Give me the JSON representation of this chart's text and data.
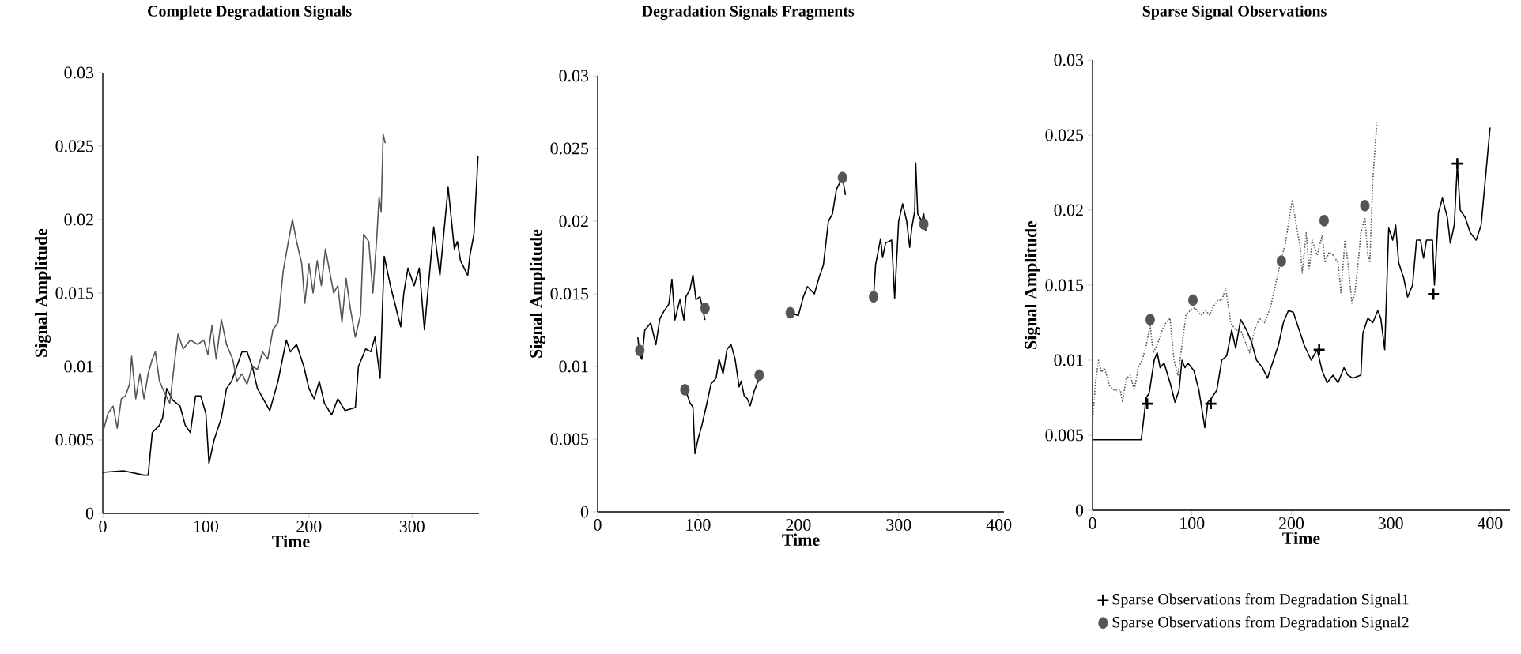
{
  "chart_data": [
    {
      "type": "line",
      "title": "Complete Degradation Signals",
      "xlabel": "Time",
      "ylabel": "Signal Amplitude",
      "xlim": [
        0,
        365
      ],
      "ylim": [
        0,
        0.03
      ],
      "xticks": [
        0,
        100,
        200,
        300
      ],
      "yticks": [
        0,
        0.005,
        0.01,
        0.015,
        0.02,
        0.025,
        0.03
      ],
      "series": [
        {
          "color": "#000000",
          "x": [
            0,
            20,
            40,
            44,
            48,
            55,
            58,
            62,
            68,
            75,
            80,
            85,
            90,
            95,
            100,
            103,
            108,
            115,
            120,
            125,
            135,
            140,
            145,
            150,
            158,
            162,
            170,
            178,
            182,
            188,
            195,
            200,
            205,
            210,
            215,
            222,
            228,
            235,
            245,
            248,
            255,
            260,
            264,
            269,
            273,
            279,
            289,
            292,
            296,
            302,
            307,
            312,
            321,
            327,
            335,
            341,
            344,
            347,
            354,
            356,
            360,
            364
          ],
          "values": [
            0.0028,
            0.0029,
            0.0026,
            0.0026,
            0.0055,
            0.006,
            0.0065,
            0.0085,
            0.0077,
            0.0073,
            0.006,
            0.0055,
            0.008,
            0.008,
            0.0068,
            0.0034,
            0.005,
            0.0065,
            0.0085,
            0.009,
            0.011,
            0.011,
            0.01,
            0.0085,
            0.0075,
            0.007,
            0.009,
            0.0118,
            0.011,
            0.0115,
            0.01,
            0.0085,
            0.0078,
            0.009,
            0.0075,
            0.0067,
            0.0078,
            0.007,
            0.0072,
            0.01,
            0.0112,
            0.011,
            0.012,
            0.0092,
            0.0175,
            0.0155,
            0.0127,
            0.015,
            0.0167,
            0.0155,
            0.0167,
            0.0125,
            0.0195,
            0.0162,
            0.0222,
            0.018,
            0.0185,
            0.0172,
            0.0162,
            0.0175,
            0.019,
            0.0243
          ]
        },
        {
          "color": "#555555",
          "x": [
            0,
            5,
            10,
            14,
            18,
            22,
            26,
            28,
            32,
            36,
            40,
            44,
            48,
            51,
            55,
            60,
            65,
            70,
            73,
            78,
            85,
            92,
            98,
            102,
            106,
            110,
            115,
            120,
            126,
            130,
            135,
            140,
            145,
            150,
            155,
            160,
            165,
            170,
            175,
            180,
            184,
            188,
            193,
            196,
            200,
            204,
            208,
            212,
            216,
            220,
            224,
            228,
            232,
            236,
            240,
            245,
            250,
            253,
            258,
            262,
            266,
            268,
            270,
            272,
            274
          ],
          "values": [
            0.0055,
            0.0068,
            0.0073,
            0.0058,
            0.0078,
            0.008,
            0.0088,
            0.0107,
            0.0078,
            0.0095,
            0.0078,
            0.0095,
            0.0105,
            0.011,
            0.009,
            0.0082,
            0.0075,
            0.0105,
            0.0122,
            0.0112,
            0.0118,
            0.0115,
            0.0118,
            0.0108,
            0.0128,
            0.0105,
            0.0132,
            0.0115,
            0.0105,
            0.009,
            0.0095,
            0.0088,
            0.01,
            0.0098,
            0.011,
            0.0105,
            0.0125,
            0.013,
            0.0165,
            0.0185,
            0.02,
            0.0185,
            0.017,
            0.0143,
            0.017,
            0.015,
            0.0172,
            0.0155,
            0.018,
            0.0165,
            0.015,
            0.0155,
            0.013,
            0.016,
            0.014,
            0.012,
            0.0135,
            0.019,
            0.0185,
            0.015,
            0.019,
            0.0215,
            0.0205,
            0.0258,
            0.0252
          ]
        }
      ]
    },
    {
      "type": "line",
      "title": "Degradation Signals Fragments",
      "xlabel": "Time",
      "ylabel": "Signal Amplitude",
      "xlim": [
        0,
        405
      ],
      "ylim": [
        0,
        0.03
      ],
      "xticks": [
        0,
        100,
        200,
        300,
        400
      ],
      "yticks": [
        0,
        0.005,
        0.01,
        0.015,
        0.02,
        0.025,
        0.03
      ],
      "series": [
        {
          "color": "#000000",
          "x": [
            40,
            42,
            44,
            47,
            53,
            58,
            62,
            66,
            71,
            74,
            77,
            82,
            86,
            88,
            92,
            95,
            98,
            102,
            107
          ],
          "values": [
            0.012,
            0.0108,
            0.0105,
            0.0125,
            0.013,
            0.0115,
            0.0133,
            0.0138,
            0.0143,
            0.016,
            0.0132,
            0.0146,
            0.0132,
            0.0148,
            0.0153,
            0.0163,
            0.0146,
            0.0148,
            0.0132
          ]
        },
        {
          "color": "#000000",
          "x": [
            87,
            92,
            95,
            97,
            100,
            104,
            108,
            113,
            118,
            121,
            125,
            129,
            133,
            137,
            141,
            143,
            146,
            149,
            152,
            156,
            161
          ],
          "values": [
            0.0085,
            0.0075,
            0.0072,
            0.004,
            0.005,
            0.006,
            0.0072,
            0.0088,
            0.0092,
            0.0105,
            0.0095,
            0.0112,
            0.0115,
            0.0105,
            0.0086,
            0.009,
            0.008,
            0.0078,
            0.0073,
            0.0083,
            0.0092
          ]
        },
        {
          "color": "#000000",
          "x": [
            192,
            200,
            205,
            209,
            216,
            221,
            225,
            230,
            234,
            238,
            244,
            247
          ],
          "values": [
            0.0137,
            0.0135,
            0.0148,
            0.0155,
            0.015,
            0.0162,
            0.017,
            0.02,
            0.0205,
            0.0222,
            0.023,
            0.0218
          ]
        },
        {
          "color": "#000000",
          "x": [
            275,
            277,
            282,
            284,
            287,
            293,
            296,
            300,
            304,
            308,
            311,
            313,
            316,
            317,
            319,
            323,
            325,
            327
          ],
          "values": [
            0.0148,
            0.017,
            0.0188,
            0.0175,
            0.0185,
            0.0187,
            0.0147,
            0.02,
            0.0212,
            0.02,
            0.0182,
            0.0195,
            0.0207,
            0.024,
            0.0205,
            0.02,
            0.0205,
            0.0193
          ]
        },
        {
          "type": "scatter",
          "marker": "circle",
          "color": "#555555",
          "x": [
            42,
            107,
            87,
            161,
            192,
            244,
            275,
            325
          ],
          "values": [
            0.0111,
            0.014,
            0.0084,
            0.0094,
            0.0137,
            0.023,
            0.0148,
            0.0198
          ]
        }
      ]
    },
    {
      "type": "line",
      "title": "Sparse Signal Observations",
      "xlabel": "Time",
      "ylabel": "Signal Amplitude",
      "xlim": [
        0,
        420
      ],
      "ylim": [
        0,
        0.03
      ],
      "xticks": [
        0,
        100,
        200,
        300,
        400
      ],
      "yticks": [
        0,
        0.005,
        0.01,
        0.015,
        0.02,
        0.025,
        0.03
      ],
      "legend": "bottom",
      "series": [
        {
          "color": "#000000",
          "line_style": "solid",
          "x": [
            0,
            49,
            54,
            57,
            62,
            65,
            68,
            72,
            78,
            83,
            87,
            90,
            93,
            96,
            102,
            107,
            113,
            116,
            120,
            125,
            130,
            135,
            140,
            144,
            149,
            155,
            160,
            165,
            171,
            176,
            181,
            187,
            192,
            197,
            202,
            208,
            213,
            220,
            226,
            231,
            236,
            242,
            247,
            253,
            257,
            262,
            270,
            272,
            277,
            282,
            287,
            290,
            294,
            298,
            302,
            305,
            308,
            313,
            317,
            322,
            326,
            330,
            333,
            336,
            342,
            344,
            348,
            352,
            357,
            360,
            364,
            367,
            370,
            375,
            380,
            386,
            391,
            400
          ],
          "values": [
            0.0047,
            0.0047,
            0.0075,
            0.0078,
            0.01,
            0.0105,
            0.0095,
            0.0098,
            0.0085,
            0.0072,
            0.008,
            0.01,
            0.0095,
            0.0098,
            0.0093,
            0.008,
            0.0055,
            0.0072,
            0.0075,
            0.008,
            0.01,
            0.0103,
            0.012,
            0.0108,
            0.0127,
            0.012,
            0.0112,
            0.01,
            0.0095,
            0.0088,
            0.0098,
            0.011,
            0.0125,
            0.0133,
            0.0132,
            0.012,
            0.011,
            0.01,
            0.0107,
            0.0093,
            0.0085,
            0.009,
            0.0085,
            0.0095,
            0.009,
            0.0088,
            0.009,
            0.0118,
            0.0128,
            0.0125,
            0.0133,
            0.0128,
            0.0107,
            0.0188,
            0.018,
            0.019,
            0.0165,
            0.0155,
            0.0142,
            0.015,
            0.018,
            0.018,
            0.0168,
            0.018,
            0.018,
            0.015,
            0.0198,
            0.0208,
            0.0195,
            0.0178,
            0.019,
            0.023,
            0.02,
            0.0195,
            0.0185,
            0.018,
            0.019,
            0.0255
          ]
        },
        {
          "color": "#555555",
          "line_style": "dotted",
          "x": [
            0,
            3,
            6,
            9,
            12,
            17,
            22,
            28,
            30,
            34,
            38,
            42,
            46,
            50,
            54,
            58,
            61,
            65,
            70,
            74,
            78,
            82,
            86,
            90,
            94,
            98,
            103,
            109,
            114,
            118,
            121,
            126,
            130,
            134,
            139,
            144,
            149,
            155,
            158,
            163,
            168,
            173,
            179,
            184,
            189,
            194,
            201,
            205,
            209,
            211,
            215,
            218,
            221,
            226,
            231,
            234,
            238,
            242,
            247,
            250,
            254,
            257,
            261,
            264,
            268,
            270,
            274,
            277,
            279,
            282,
            286
          ],
          "values": [
            0.006,
            0.0085,
            0.01,
            0.0092,
            0.0095,
            0.0083,
            0.008,
            0.008,
            0.0072,
            0.0088,
            0.009,
            0.008,
            0.0095,
            0.01,
            0.011,
            0.0123,
            0.0105,
            0.011,
            0.012,
            0.0125,
            0.0128,
            0.01,
            0.009,
            0.011,
            0.013,
            0.0133,
            0.0135,
            0.013,
            0.0133,
            0.013,
            0.0135,
            0.014,
            0.014,
            0.0148,
            0.0125,
            0.012,
            0.012,
            0.011,
            0.0105,
            0.012,
            0.0128,
            0.0125,
            0.0135,
            0.015,
            0.0165,
            0.0178,
            0.0207,
            0.019,
            0.0175,
            0.0158,
            0.0185,
            0.016,
            0.018,
            0.017,
            0.0183,
            0.0165,
            0.0172,
            0.017,
            0.0165,
            0.0145,
            0.018,
            0.0165,
            0.0138,
            0.0145,
            0.017,
            0.0185,
            0.0195,
            0.017,
            0.0165,
            0.022,
            0.0258
          ]
        },
        {
          "type": "scatter",
          "name": "Sparse Observations from Degradation Signal1",
          "marker": "cross",
          "color": "#000000",
          "x": [
            55,
            119,
            228,
            343,
            367
          ],
          "values": [
            0.0071,
            0.0071,
            0.0107,
            0.0144,
            0.0231
          ]
        },
        {
          "type": "scatter",
          "name": "Sparse Observations from Degradation Signal2",
          "marker": "circle",
          "color": "#555555",
          "x": [
            58,
            101,
            190,
            233,
            274
          ],
          "values": [
            0.0127,
            0.014,
            0.0166,
            0.0193,
            0.0203
          ]
        }
      ]
    }
  ]
}
